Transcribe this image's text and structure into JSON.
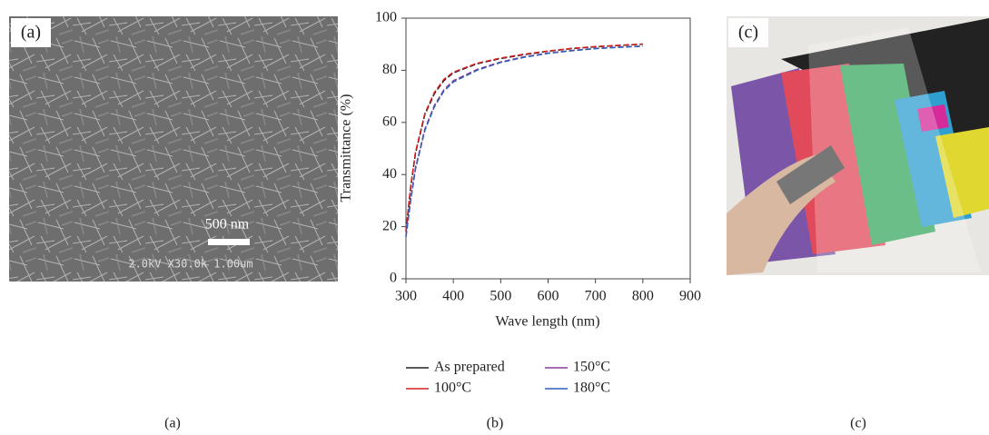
{
  "chart_data": {
    "type": "line",
    "x_label": "Wave length (nm)",
    "y_label": "Transmittance (%)",
    "x": [
      300,
      310,
      320,
      340,
      360,
      380,
      400,
      450,
      500,
      550,
      600,
      650,
      700,
      750,
      800
    ],
    "series": [
      {
        "name": "As prepared",
        "color": "#222222",
        "values": [
          18,
          35,
          48,
          63,
          71,
          76,
          79,
          82.5,
          84.5,
          86,
          87.3,
          88.3,
          89,
          89.5,
          90
        ]
      },
      {
        "name": "100°C",
        "color": "#d42020",
        "values": [
          18.5,
          35.5,
          48.5,
          63.5,
          71.5,
          76.5,
          79.3,
          82.7,
          84.7,
          86.2,
          87.4,
          88.4,
          89.1,
          89.6,
          90.1
        ]
      },
      {
        "name": "150°C",
        "color": "#8a3a9a",
        "values": [
          16.5,
          30.5,
          42.5,
          57.5,
          66.5,
          72.5,
          76,
          80.3,
          83.2,
          85.2,
          86.6,
          87.6,
          88.4,
          88.9,
          89.3
        ]
      },
      {
        "name": "180°C",
        "color": "#2f5fb8",
        "values": [
          16,
          30,
          42,
          57,
          66,
          72,
          75.5,
          80,
          83,
          85,
          86.5,
          87.5,
          88.3,
          88.8,
          89.2
        ]
      }
    ],
    "line_style": "dashed",
    "xlim": [
      300,
      900
    ],
    "xticks": [
      300,
      400,
      500,
      600,
      700,
      800,
      900
    ],
    "ylim": [
      0,
      100
    ],
    "yticks": [
      0,
      20,
      40,
      60,
      80,
      100
    ]
  },
  "figure": {
    "panel_a": {
      "label": "(a)",
      "scale_bar": "500 nm",
      "sem_info": "2.0kV X30.0k 1.00um"
    },
    "panel_c": {
      "label": "(c)"
    },
    "captions": [
      "(a)",
      "(b)",
      "(c)"
    ]
  }
}
